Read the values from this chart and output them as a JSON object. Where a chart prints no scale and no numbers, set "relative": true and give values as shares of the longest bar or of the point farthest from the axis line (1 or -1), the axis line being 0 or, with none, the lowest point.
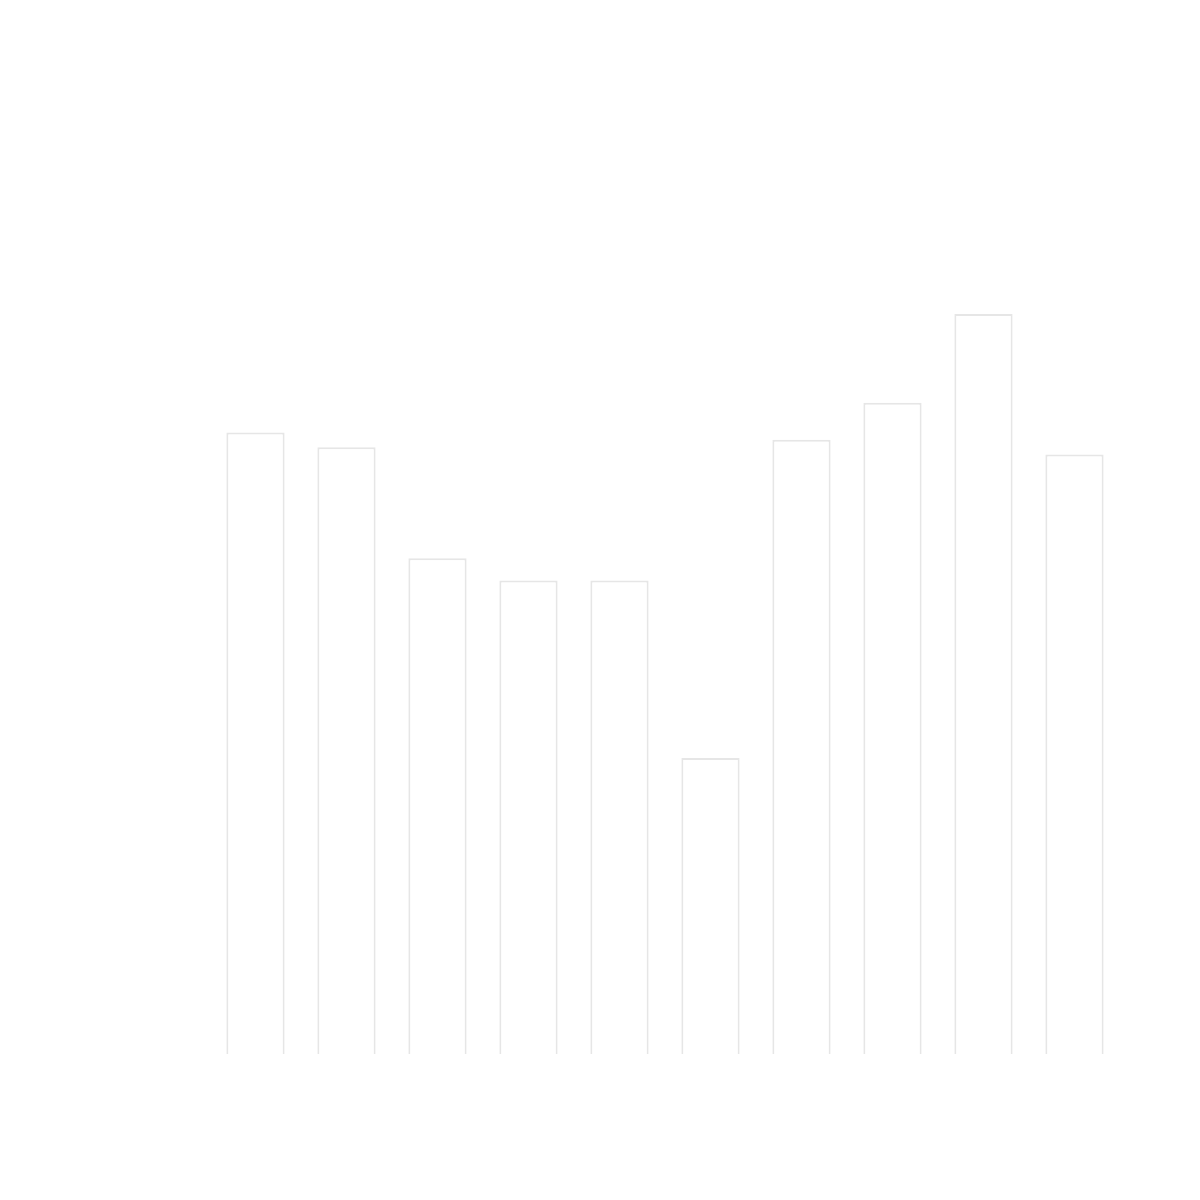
{
  "chart_data": {
    "type": "bar",
    "relative": true,
    "categories": [
      null,
      null,
      null,
      null,
      null,
      null,
      null,
      null,
      null,
      null
    ],
    "values": [
      0.84,
      0.82,
      0.67,
      0.64,
      0.64,
      0.4,
      0.83,
      0.88,
      1,
      0.81
    ],
    "color": "#e6e6e6",
    "legend": false
  }
}
